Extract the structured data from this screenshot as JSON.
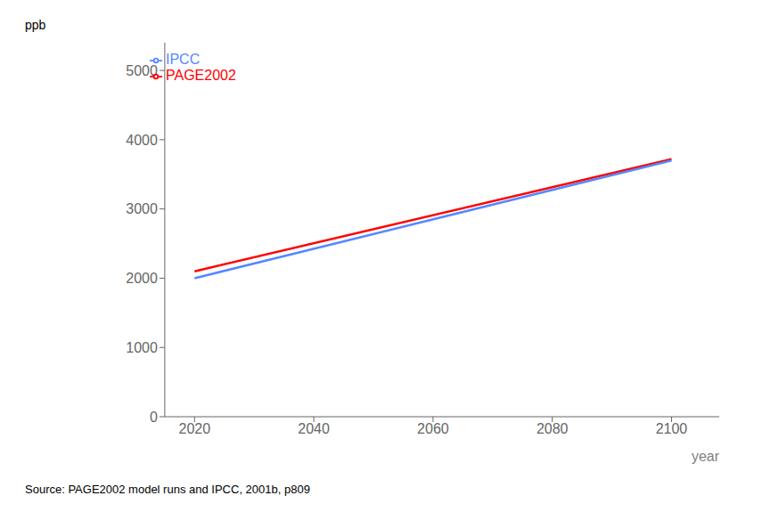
{
  "chart_data": {
    "type": "line",
    "xlabel": "year",
    "ylabel": "ppb",
    "annotations": [
      "Source: PAGE2002 model runs and IPCC, 2001b, p809"
    ],
    "x": [
      2020,
      2100
    ],
    "series": [
      {
        "name": "PAGE2002",
        "color": "#FF0000",
        "values": [
          2100,
          3720
        ]
      },
      {
        "name": "IPCC",
        "color": "#5588FF",
        "values": [
          2000,
          3700
        ]
      }
    ],
    "xlim": [
      2015,
      2108
    ],
    "ylim": [
      0,
      5400
    ],
    "xticks": [
      2020,
      2040,
      2060,
      2080,
      2100
    ],
    "yticks": [
      0,
      1000,
      2000,
      3000,
      4000,
      5000
    ],
    "grid": false,
    "legend": "upper left"
  }
}
